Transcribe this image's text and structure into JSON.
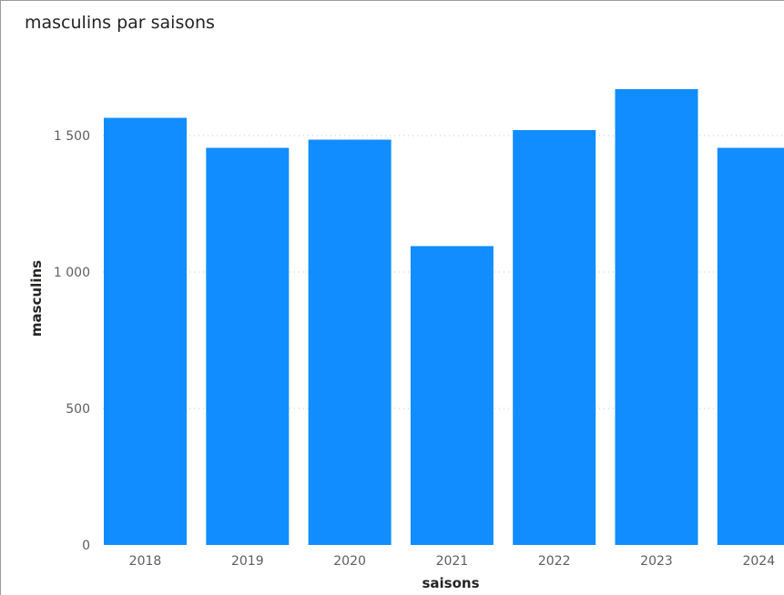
{
  "chart_data": {
    "type": "bar",
    "title": "masculins par saisons",
    "xlabel": "saisons",
    "ylabel": "masculins",
    "categories": [
      "2018",
      "2019",
      "2020",
      "2021",
      "2022",
      "2023",
      "2024"
    ],
    "values": [
      1565,
      1455,
      1485,
      1095,
      1520,
      1670,
      1455
    ],
    "ylim": [
      0,
      1800
    ],
    "yticks": [
      0,
      500,
      1000,
      1500
    ],
    "ytick_labels": [
      "0",
      "500",
      "1 000",
      "1 500"
    ],
    "grid": true,
    "bar_color": "#118dff"
  }
}
